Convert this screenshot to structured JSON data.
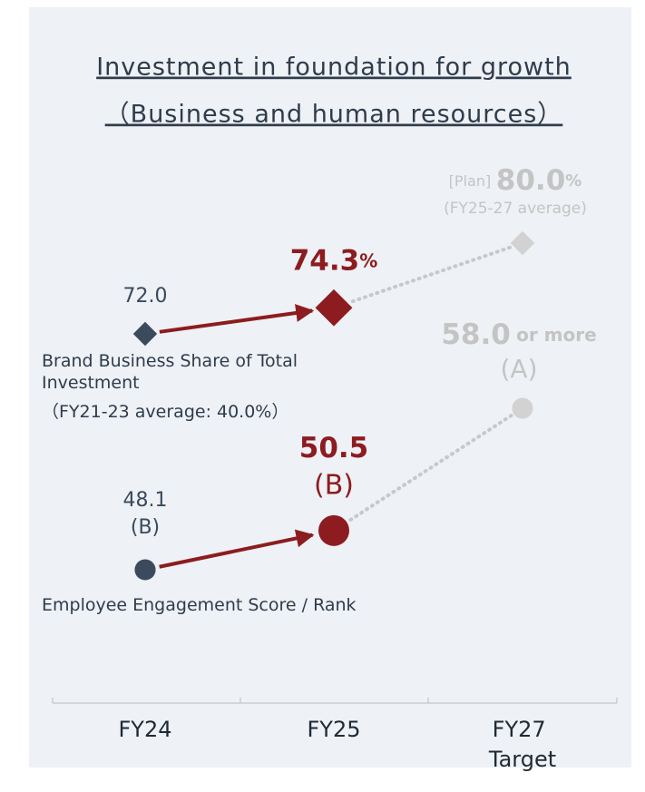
{
  "chart_data": {
    "type": "line",
    "title": [
      "Investment in foundation for growth",
      "（Business and human resources）"
    ],
    "categories": [
      "FY24",
      "FY25",
      "FY27 Target"
    ],
    "point_colors": [
      "#3b4a5c",
      "#8c1c1f",
      "#d2d2d2"
    ],
    "series": [
      {
        "name": "Brand Business Share of Total Investment",
        "note": "（FY21-23 average: 40.0%）",
        "marker": "diamond",
        "values": [
          72,
          74.3,
          80
        ],
        "value_labels": [
          "72.0",
          "74.3%",
          "80.0%"
        ]
      },
      {
        "name": "Employee Engagement Score / Rank",
        "marker": "circle",
        "values": [
          48.1,
          50.5,
          58
        ],
        "value_labels": [
          "48.1",
          "50.5",
          "58.0"
        ],
        "ranks": [
          "(B)",
          "(B)",
          "(A)"
        ]
      }
    ],
    "annotations": {
      "plan": "[Plan]",
      "plan_period": "(FY25-27 average)",
      "target_suffix": "or more"
    }
  }
}
